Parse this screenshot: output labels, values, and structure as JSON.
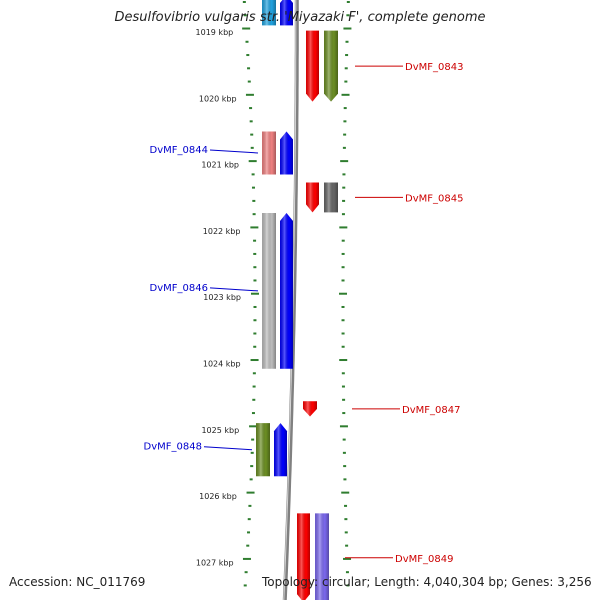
{
  "title": "Desulfovibrio vulgaris str. 'Miyazaki F', complete genome",
  "footer": {
    "accession": "Accession: NC_011769",
    "summary": "Topology: circular; Length: 4,040,304 bp; Genes: 3,256"
  },
  "colors": {
    "tick": "#2f7d2f",
    "backbone": "#808080",
    "forward_label": "#cc0000",
    "reverse_label": "#0000cc",
    "red": "#ff0000",
    "blue": "#0000ff",
    "olive": "#6b8e23",
    "grey": "#bdbdbd",
    "darkgrey": "#666666",
    "pink": "#f08080",
    "purple": "#7b68ee",
    "cyan": "#1fa3e0"
  },
  "scale_ticks": [
    "1019 kbp",
    "1020 kbp",
    "1021 kbp",
    "1022 kbp",
    "1023 kbp",
    "1024 kbp",
    "1025 kbp",
    "1026 kbp",
    "1027 kbp"
  ],
  "genes": [
    {
      "label": "DvMF_0843",
      "strand": "forward",
      "start_kbp": 1018.98,
      "end_kbp": 1020.05,
      "cog_color": "olive"
    },
    {
      "label": "DvMF_0844",
      "strand": "reverse",
      "start_kbp": 1020.5,
      "end_kbp": 1021.15,
      "cog_color": "pink"
    },
    {
      "label": "DvMF_0845",
      "strand": "forward",
      "start_kbp": 1021.27,
      "end_kbp": 1021.72,
      "cog_color": "darkgrey"
    },
    {
      "label": "DvMF_0846",
      "strand": "reverse",
      "start_kbp": 1021.73,
      "end_kbp": 1024.08,
      "cog_color": "grey"
    },
    {
      "label": "DvMF_0847",
      "strand": "forward",
      "start_kbp": 1024.57,
      "end_kbp": 1024.8,
      "cog_color": ""
    },
    {
      "label": "DvMF_0848",
      "strand": "reverse",
      "start_kbp": 1024.9,
      "end_kbp": 1025.7,
      "cog_color": "olive"
    },
    {
      "label": "DvMF_0849",
      "strand": "forward",
      "start_kbp": 1026.26,
      "end_kbp": 1027.6,
      "cog_color": "purple"
    },
    {
      "label": "",
      "strand": "reverse",
      "start_kbp": 1018.4,
      "end_kbp": 1018.9,
      "cog_color": "cyan"
    }
  ]
}
